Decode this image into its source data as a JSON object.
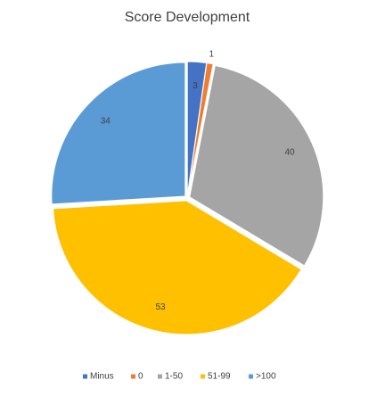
{
  "chart_data": {
    "type": "pie",
    "title": "Score Development",
    "categories": [
      "Minus",
      "0",
      "1-50",
      "51-99",
      ">100"
    ],
    "values": [
      3,
      1,
      40,
      53,
      34
    ],
    "colors": [
      "#4472c4",
      "#ed7d31",
      "#a5a5a5",
      "#ffc000",
      "#5b9bd5"
    ],
    "legend": "bottom"
  }
}
